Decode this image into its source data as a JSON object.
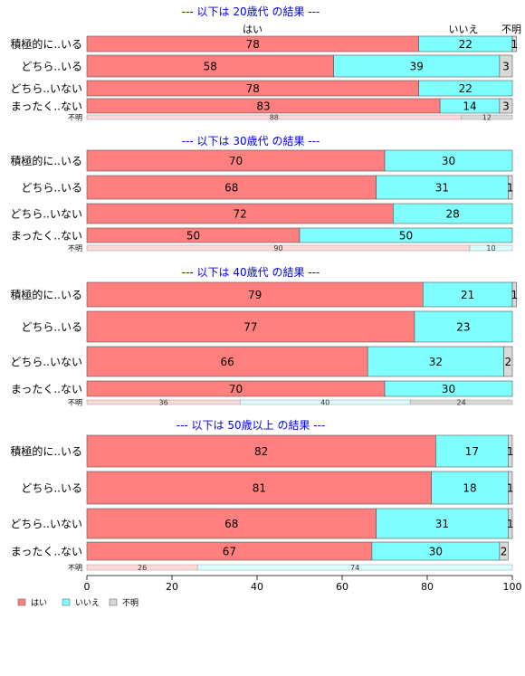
{
  "chart_data": {
    "type": "bar",
    "orientation": "horizontal",
    "stacked": "percent",
    "legend_placement": "bottom-left",
    "grid": false,
    "xlim": [
      0,
      100
    ],
    "xticks": [
      0,
      20,
      40,
      60,
      80,
      100
    ],
    "series_names": [
      "はい",
      "いいえ",
      "不明"
    ],
    "colors": {
      "はい": "#ff7f7f",
      "いいえ": "#7fffff",
      "不明": "#d9d9d9",
      "unknown_row_はい": "#ffd9d9",
      "unknown_row_いいえ": "#d9ffff",
      "title": "#0000ee"
    },
    "column_headers": {
      "yes": "はい",
      "no": "いいえ",
      "unknown": "不明"
    },
    "panels": [
      {
        "title": "--- 以下は 20歳代 の結果 ---",
        "rows": [
          {
            "label": "積極的に..いる",
            "values": [
              78,
              22,
              1
            ]
          },
          {
            "label": "どちら..いる",
            "values": [
              58,
              39,
              3
            ]
          },
          {
            "label": "どちら..いない",
            "values": [
              78,
              22,
              0
            ]
          },
          {
            "label": "まったく..ない",
            "values": [
              83,
              14,
              3
            ]
          },
          {
            "label": "不明",
            "small": true,
            "values": [
              88,
              0,
              12
            ]
          }
        ]
      },
      {
        "title": "--- 以下は 30歳代 の結果 ---",
        "rows": [
          {
            "label": "積極的に..いる",
            "values": [
              70,
              30,
              0
            ]
          },
          {
            "label": "どちら..いる",
            "values": [
              68,
              31,
              1
            ]
          },
          {
            "label": "どちら..いない",
            "values": [
              72,
              28,
              0
            ]
          },
          {
            "label": "まったく..ない",
            "values": [
              50,
              50,
              0
            ]
          },
          {
            "label": "不明",
            "small": true,
            "values": [
              90,
              10,
              0
            ]
          }
        ]
      },
      {
        "title": "--- 以下は 40歳代 の結果 ---",
        "rows": [
          {
            "label": "積極的に..いる",
            "values": [
              79,
              21,
              1
            ]
          },
          {
            "label": "どちら..いる",
            "values": [
              77,
              23,
              0
            ]
          },
          {
            "label": "どちら..いない",
            "values": [
              66,
              32,
              2
            ]
          },
          {
            "label": "まったく..ない",
            "values": [
              70,
              30,
              0
            ]
          },
          {
            "label": "不明",
            "small": true,
            "values": [
              36,
              40,
              24
            ]
          }
        ]
      },
      {
        "title": "--- 以下は 50歳以上 の結果 ---",
        "rows": [
          {
            "label": "積極的に..いる",
            "values": [
              82,
              17,
              1
            ]
          },
          {
            "label": "どちら..いる",
            "values": [
              81,
              18,
              1
            ]
          },
          {
            "label": "どちら..いない",
            "values": [
              68,
              31,
              1
            ]
          },
          {
            "label": "まったく..ない",
            "values": [
              67,
              30,
              2
            ]
          },
          {
            "label": "不明",
            "small": true,
            "values": [
              26,
              74,
              0
            ]
          }
        ]
      }
    ]
  }
}
